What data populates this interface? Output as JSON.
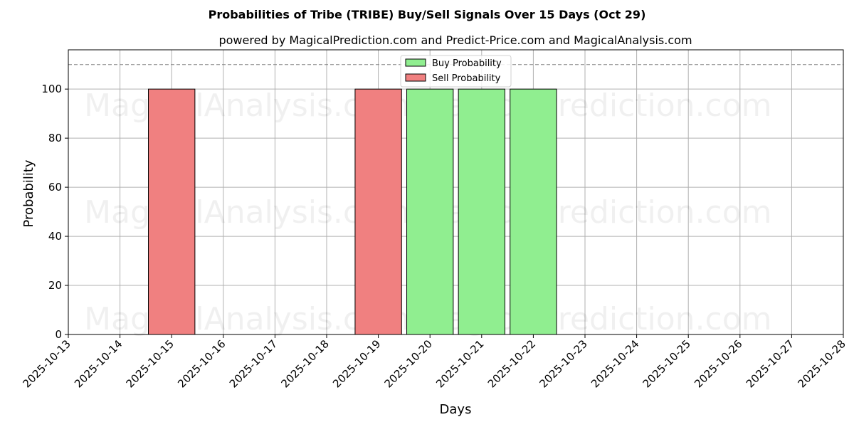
{
  "chart_data": {
    "type": "bar",
    "title": "Probabilities of Tribe (TRIBE) Buy/Sell Signals Over 15 Days (Oct 29)",
    "subtitle": "powered by MagicalPrediction.com and Predict-Price.com and MagicalAnalysis.com",
    "xlabel": "Days",
    "ylabel": "Probability",
    "ylim": [
      0,
      116
    ],
    "yticks": [
      0,
      20,
      40,
      60,
      80,
      100
    ],
    "grid": true,
    "legend_position": "upper center",
    "x_ticks": [
      "2025-10-13",
      "2025-10-14",
      "2025-10-15",
      "2025-10-16",
      "2025-10-17",
      "2025-10-18",
      "2025-10-19",
      "2025-10-20",
      "2025-10-21",
      "2025-10-22",
      "2025-10-23",
      "2025-10-24",
      "2025-10-25",
      "2025-10-26",
      "2025-10-27",
      "2025-10-28"
    ],
    "reference_line": {
      "y": 110,
      "style": "dashed",
      "color": "#808080"
    },
    "series": [
      {
        "name": "Buy Probability",
        "color": "#90ee90",
        "points": [
          {
            "x": "2025-10-20",
            "value": 100
          },
          {
            "x": "2025-10-21",
            "value": 100
          },
          {
            "x": "2025-10-22",
            "value": 100
          }
        ]
      },
      {
        "name": "Sell Probability",
        "color": "#f08080",
        "points": [
          {
            "x": "2025-10-15",
            "value": 100
          },
          {
            "x": "2025-10-19",
            "value": 100
          }
        ]
      }
    ],
    "watermarks": [
      "MagicalAnalysis.com",
      "MagicalPrediction.com"
    ]
  }
}
